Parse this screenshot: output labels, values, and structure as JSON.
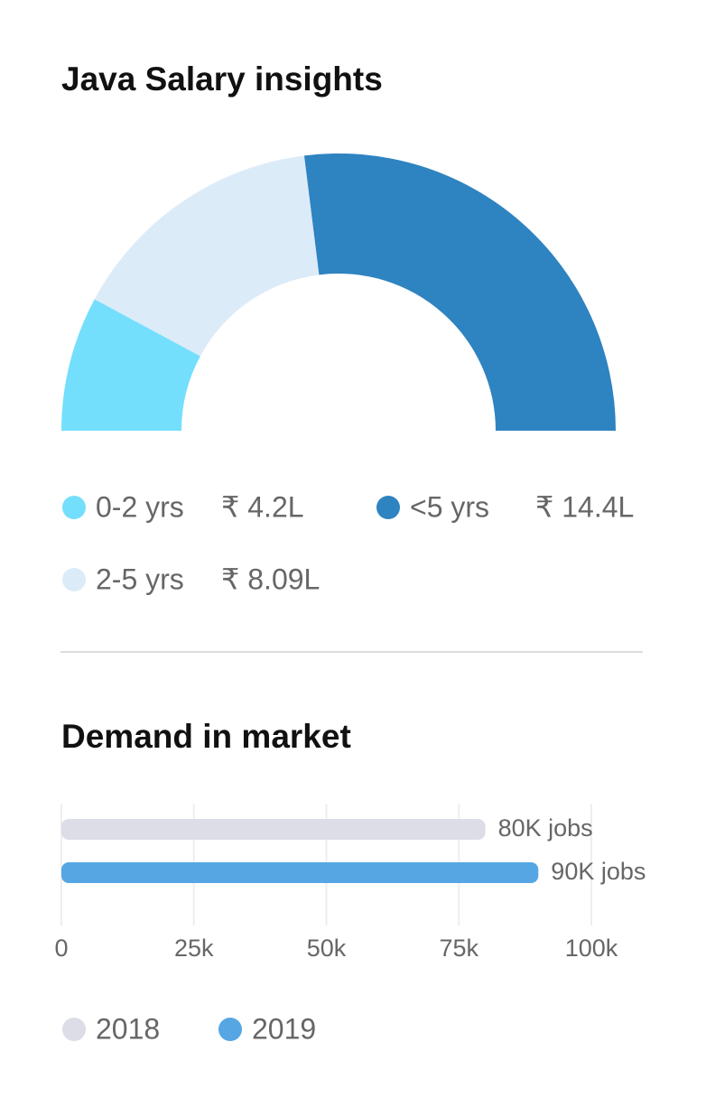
{
  "chart_data": [
    {
      "type": "semi-donut",
      "title": "Java Salary insights",
      "categories": [
        "0-2 yrs",
        "2-5 yrs",
        "<5 yrs"
      ],
      "values": [
        4.2,
        8.09,
        14.4
      ],
      "value_labels": [
        "₹ 4.2L",
        "₹ 8.09L",
        "₹ 14.4L"
      ],
      "colors": [
        "#74dffc",
        "#dcebf8",
        "#2e83c1"
      ]
    },
    {
      "type": "hbar",
      "title": "Demand in market",
      "series": [
        {
          "name": "2018",
          "color": "#dcdde6",
          "values": [
            80000
          ],
          "value_labels": [
            "80K jobs"
          ]
        },
        {
          "name": "2019",
          "color": "#55a6e3",
          "values": [
            90000
          ],
          "value_labels": [
            "90K jobs"
          ]
        }
      ],
      "xlim": [
        0,
        100000
      ],
      "xticks": [
        0,
        {
          "value": 25000,
          "label": "25k"
        },
        {
          "value": 50000,
          "label": "50k"
        },
        {
          "value": 75000,
          "label": "75k"
        },
        {
          "value": 100000,
          "label": "100k"
        }
      ],
      "grid": true
    }
  ]
}
